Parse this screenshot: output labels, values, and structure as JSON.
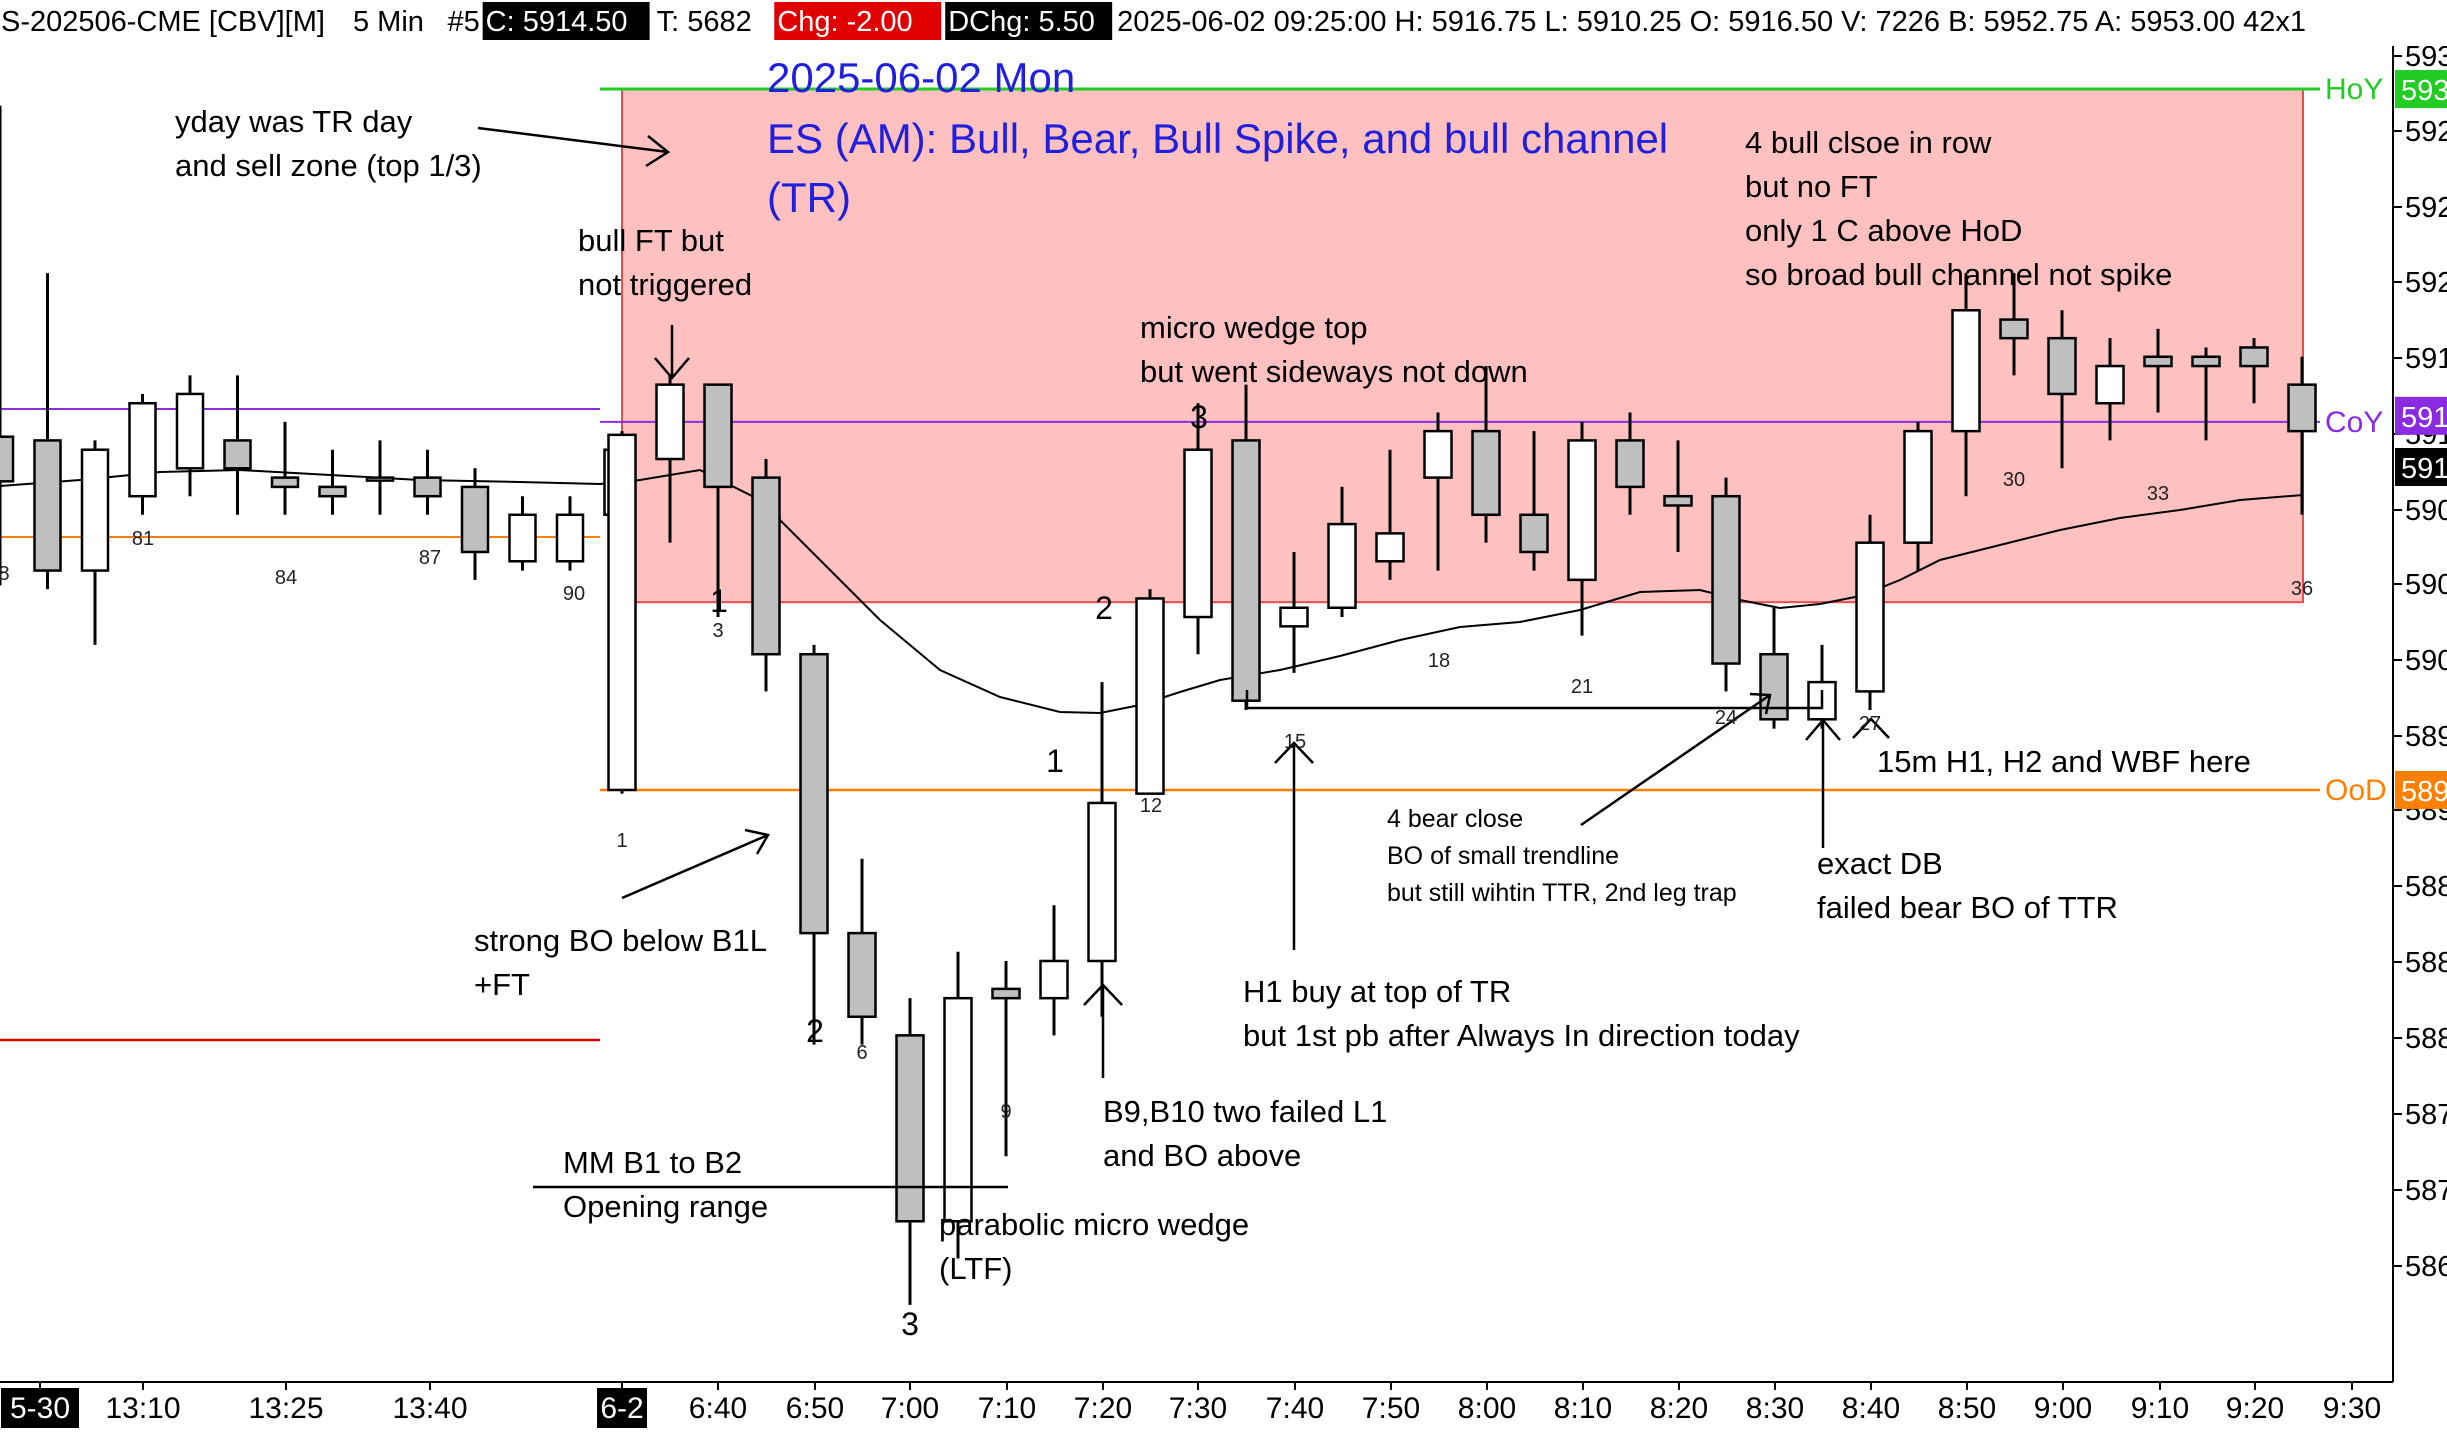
{
  "header": {
    "symbol": "S-202506-CME [CBV][M]",
    "timeframe": "5 Min",
    "number": "#5",
    "close": "C: 5914.50",
    "ticks": "T: 5682",
    "change": "Chg: -2.00",
    "day_change": "DChg: 5.50",
    "rest": "2025-06-02 09:25:00 H: 5916.75 L: 5910.25 O: 5916.50 V: 7226 B: 5952.75 A: 5953.00 42x1"
  },
  "colors": {
    "bull_body": "#ffffff",
    "bear_body": "#bfbfbf",
    "zone_fill": "#ffc0c0",
    "zone_border": "#e05050",
    "hoy_line": "#22cc22",
    "coy_line": "#8a2be2",
    "ood_line": "#ff8000",
    "yday_low_line": "#e00000",
    "ema_line": "#000000",
    "title_color": "#1f1fdd",
    "chg_negative_bg": "#e00000"
  },
  "chart_data": {
    "type": "candlestick",
    "title": "2025-06-02 Mon",
    "subtitle": "ES (AM): Bull, Bear, Bull Spike, and bull channel (TR)",
    "ylim": [
      5864,
      5935
    ],
    "y_tick_labels": [
      "593",
      "592",
      "592",
      "592",
      "591",
      "591",
      "590",
      "590",
      "590",
      "589",
      "589",
      "588",
      "588",
      "588",
      "587",
      "587",
      "586"
    ],
    "x_tick_labels": [
      "5-30",
      "13:10",
      "13:25",
      "13:40",
      "6-2",
      "6:40",
      "6:50",
      "7:00",
      "7:10",
      "7:20",
      "7:30",
      "7:40",
      "7:50",
      "8:00",
      "8:10",
      "8:20",
      "8:30",
      "8:40",
      "8:50",
      "9:00",
      "9:10",
      "9:20",
      "9:30"
    ],
    "price_tags": [
      {
        "name": "HoY",
        "text": "593",
        "color": "#22cc22"
      },
      {
        "name": "CoY",
        "text": "591",
        "color": "#8a2be2"
      },
      {
        "name": "OoD",
        "text": "589",
        "color": "#ff8000"
      },
      {
        "name": "last",
        "text": "591",
        "color": "#000000"
      }
    ],
    "levels": [
      {
        "name": "HoY",
        "value": 5932.9
      },
      {
        "name": "CoY",
        "value": 5915.0
      },
      {
        "name": "OoD",
        "value": 5895.2
      }
    ],
    "sell_zone": {
      "top": 5932.9,
      "bottom": 5905.3
    },
    "prev_day_candles": [
      {
        "o": 5914.2,
        "h": 5932.0,
        "l": 5906.2,
        "c": 5911.8
      },
      {
        "o": 5914.0,
        "h": 5923.0,
        "l": 5906.0,
        "c": 5907.0
      },
      {
        "o": 5907.0,
        "h": 5914.0,
        "l": 5903.0,
        "c": 5913.5
      },
      {
        "o": 5911.0,
        "h": 5916.5,
        "l": 5910.0,
        "c": 5916.0
      },
      {
        "o": 5912.5,
        "h": 5917.5,
        "l": 5911.0,
        "c": 5916.5
      },
      {
        "o": 5914.0,
        "h": 5917.5,
        "l": 5910.0,
        "c": 5912.5
      },
      {
        "o": 5912.0,
        "h": 5915.0,
        "l": 5910.0,
        "c": 5911.5
      },
      {
        "o": 5911.5,
        "h": 5913.5,
        "l": 5910.0,
        "c": 5911.0
      },
      {
        "o": 5912.0,
        "h": 5914.0,
        "l": 5910.0,
        "c": 5912.0
      },
      {
        "o": 5912.0,
        "h": 5913.5,
        "l": 5910.0,
        "c": 5911.0
      },
      {
        "o": 5911.5,
        "h": 5912.5,
        "l": 5906.5,
        "c": 5908.0
      },
      {
        "o": 5907.5,
        "h": 5911.0,
        "l": 5907.0,
        "c": 5910.0
      },
      {
        "o": 5907.5,
        "h": 5911.0,
        "l": 5907.0,
        "c": 5910.0
      },
      {
        "o": 5910.0,
        "h": 5914.0,
        "l": 5907.0,
        "c": 5913.5
      }
    ],
    "day_candles": [
      {
        "o": 5895.2,
        "h": 5914.5,
        "l": 5895.0,
        "c": 5914.3
      },
      {
        "o": 5913.0,
        "h": 5917.5,
        "l": 5908.5,
        "c": 5917.0
      },
      {
        "o": 5917.0,
        "h": 5917.0,
        "l": 5904.5,
        "c": 5911.5
      },
      {
        "o": 5912.0,
        "h": 5913.0,
        "l": 5900.5,
        "c": 5902.5
      },
      {
        "o": 5902.5,
        "h": 5903.0,
        "l": 5881.5,
        "c": 5887.5
      },
      {
        "o": 5887.5,
        "h": 5891.5,
        "l": 5881.5,
        "c": 5883.0
      },
      {
        "o": 5882.0,
        "h": 5884.0,
        "l": 5867.5,
        "c": 5872.0
      },
      {
        "o": 5872.0,
        "h": 5886.5,
        "l": 5870.0,
        "c": 5884.0
      },
      {
        "o": 5884.5,
        "h": 5886.0,
        "l": 5875.5,
        "c": 5884.0
      },
      {
        "o": 5884.0,
        "h": 5889.0,
        "l": 5882.0,
        "c": 5886.0
      },
      {
        "o": 5886.0,
        "h": 5901.0,
        "l": 5883.0,
        "c": 5894.5
      },
      {
        "o": 5895.0,
        "h": 5906.0,
        "l": 5895.0,
        "c": 5905.5
      },
      {
        "o": 5904.5,
        "h": 5916.0,
        "l": 5902.5,
        "c": 5913.5
      },
      {
        "o": 5914.0,
        "h": 5917.0,
        "l": 5899.5,
        "c": 5900.0
      },
      {
        "o": 5904.0,
        "h": 5908.0,
        "l": 5901.5,
        "c": 5905.0
      },
      {
        "o": 5905.0,
        "h": 5911.5,
        "l": 5904.5,
        "c": 5909.5
      },
      {
        "o": 5907.5,
        "h": 5913.5,
        "l": 5906.5,
        "c": 5909.0
      },
      {
        "o": 5912.0,
        "h": 5915.5,
        "l": 5907.0,
        "c": 5914.5
      },
      {
        "o": 5914.5,
        "h": 5918.0,
        "l": 5908.5,
        "c": 5910.0
      },
      {
        "o": 5910.0,
        "h": 5914.5,
        "l": 5907.0,
        "c": 5908.0
      },
      {
        "o": 5906.5,
        "h": 5915.0,
        "l": 5903.5,
        "c": 5914.0
      },
      {
        "o": 5914.0,
        "h": 5915.5,
        "l": 5910.0,
        "c": 5911.5
      },
      {
        "o": 5911.0,
        "h": 5914.0,
        "l": 5908.0,
        "c": 5910.5
      },
      {
        "o": 5911.0,
        "h": 5912.0,
        "l": 5900.5,
        "c": 5902.0
      },
      {
        "o": 5902.5,
        "h": 5905.0,
        "l": 5898.5,
        "c": 5899.0
      },
      {
        "o": 5899.0,
        "h": 5903.0,
        "l": 5898.5,
        "c": 5901.0
      },
      {
        "o": 5900.5,
        "h": 5910.0,
        "l": 5899.5,
        "c": 5908.5
      },
      {
        "o": 5908.5,
        "h": 5915.0,
        "l": 5907.0,
        "c": 5914.5
      },
      {
        "o": 5914.5,
        "h": 5923.0,
        "l": 5911.0,
        "c": 5921.0
      },
      {
        "o": 5920.5,
        "h": 5923.0,
        "l": 5917.5,
        "c": 5919.5
      },
      {
        "o": 5919.5,
        "h": 5921.0,
        "l": 5912.5,
        "c": 5916.5
      },
      {
        "o": 5916.0,
        "h": 5919.5,
        "l": 5914.0,
        "c": 5918.0
      },
      {
        "o": 5918.5,
        "h": 5920.0,
        "l": 5915.5,
        "c": 5918.0
      },
      {
        "o": 5918.5,
        "h": 5919.0,
        "l": 5914.0,
        "c": 5918.0
      },
      {
        "o": 5919.0,
        "h": 5919.5,
        "l": 5916.0,
        "c": 5918.0
      },
      {
        "o": 5917.0,
        "h": 5918.5,
        "l": 5910.0,
        "c": 5914.5
      }
    ],
    "bar_numbers": [
      {
        "bar": 1,
        "text": "1"
      },
      {
        "bar": 3,
        "text": "3"
      },
      {
        "bar": 6,
        "text": "6"
      },
      {
        "bar": 9,
        "text": "9"
      },
      {
        "bar": 12,
        "text": "12"
      },
      {
        "bar": 15,
        "text": "15"
      },
      {
        "bar": 18,
        "text": "18"
      },
      {
        "bar": 21,
        "text": "21"
      },
      {
        "bar": 24,
        "text": "24"
      },
      {
        "bar": 27,
        "text": "27"
      },
      {
        "bar": 30,
        "text": "30"
      },
      {
        "bar": 33,
        "text": "33"
      },
      {
        "bar": 36,
        "text": "36"
      }
    ],
    "prev_bar_numbers": [
      "8",
      "81",
      "84",
      "87",
      "90"
    ],
    "annotations": [
      {
        "id": "yday",
        "lines": [
          "yday was TR day",
          "and sell zone (top 1/3)"
        ]
      },
      {
        "id": "bull_ft",
        "lines": [
          "bull FT but",
          "not triggered"
        ]
      },
      {
        "id": "micro_wedge",
        "lines": [
          "micro wedge top",
          "but went sideways not down"
        ]
      },
      {
        "id": "four_bull",
        "lines": [
          "4 bull clsoe in row",
          "but no FT",
          "only 1 C above HoD",
          "so broad bull channel not spike"
        ]
      },
      {
        "id": "strong_bo",
        "lines": [
          "strong BO below B1L",
          "+FT"
        ]
      },
      {
        "id": "mm",
        "lines": [
          "MM B1 to B2",
          "Opening range"
        ]
      },
      {
        "id": "parabolic",
        "lines": [
          "parabolic micro wedge",
          "(LTF)"
        ]
      },
      {
        "id": "b9b10",
        "lines": [
          "B9,B10 two failed L1",
          "and BO above"
        ]
      },
      {
        "id": "h1buy",
        "lines": [
          "H1 buy at top of TR",
          "but 1st pb after Always In direction today"
        ]
      },
      {
        "id": "four_bear",
        "lines": [
          "4 bear close",
          "BO of small trendline",
          "but still wihtin TTR, 2nd leg trap"
        ]
      },
      {
        "id": "exact_db",
        "lines": [
          "exact DB",
          "failed bear BO of TTR"
        ]
      },
      {
        "id": "m15",
        "lines": [
          "15m H1, H2 and WBF here"
        ]
      }
    ],
    "leg_labels": [
      "1",
      "2",
      "3",
      "1",
      "2",
      "3"
    ]
  }
}
